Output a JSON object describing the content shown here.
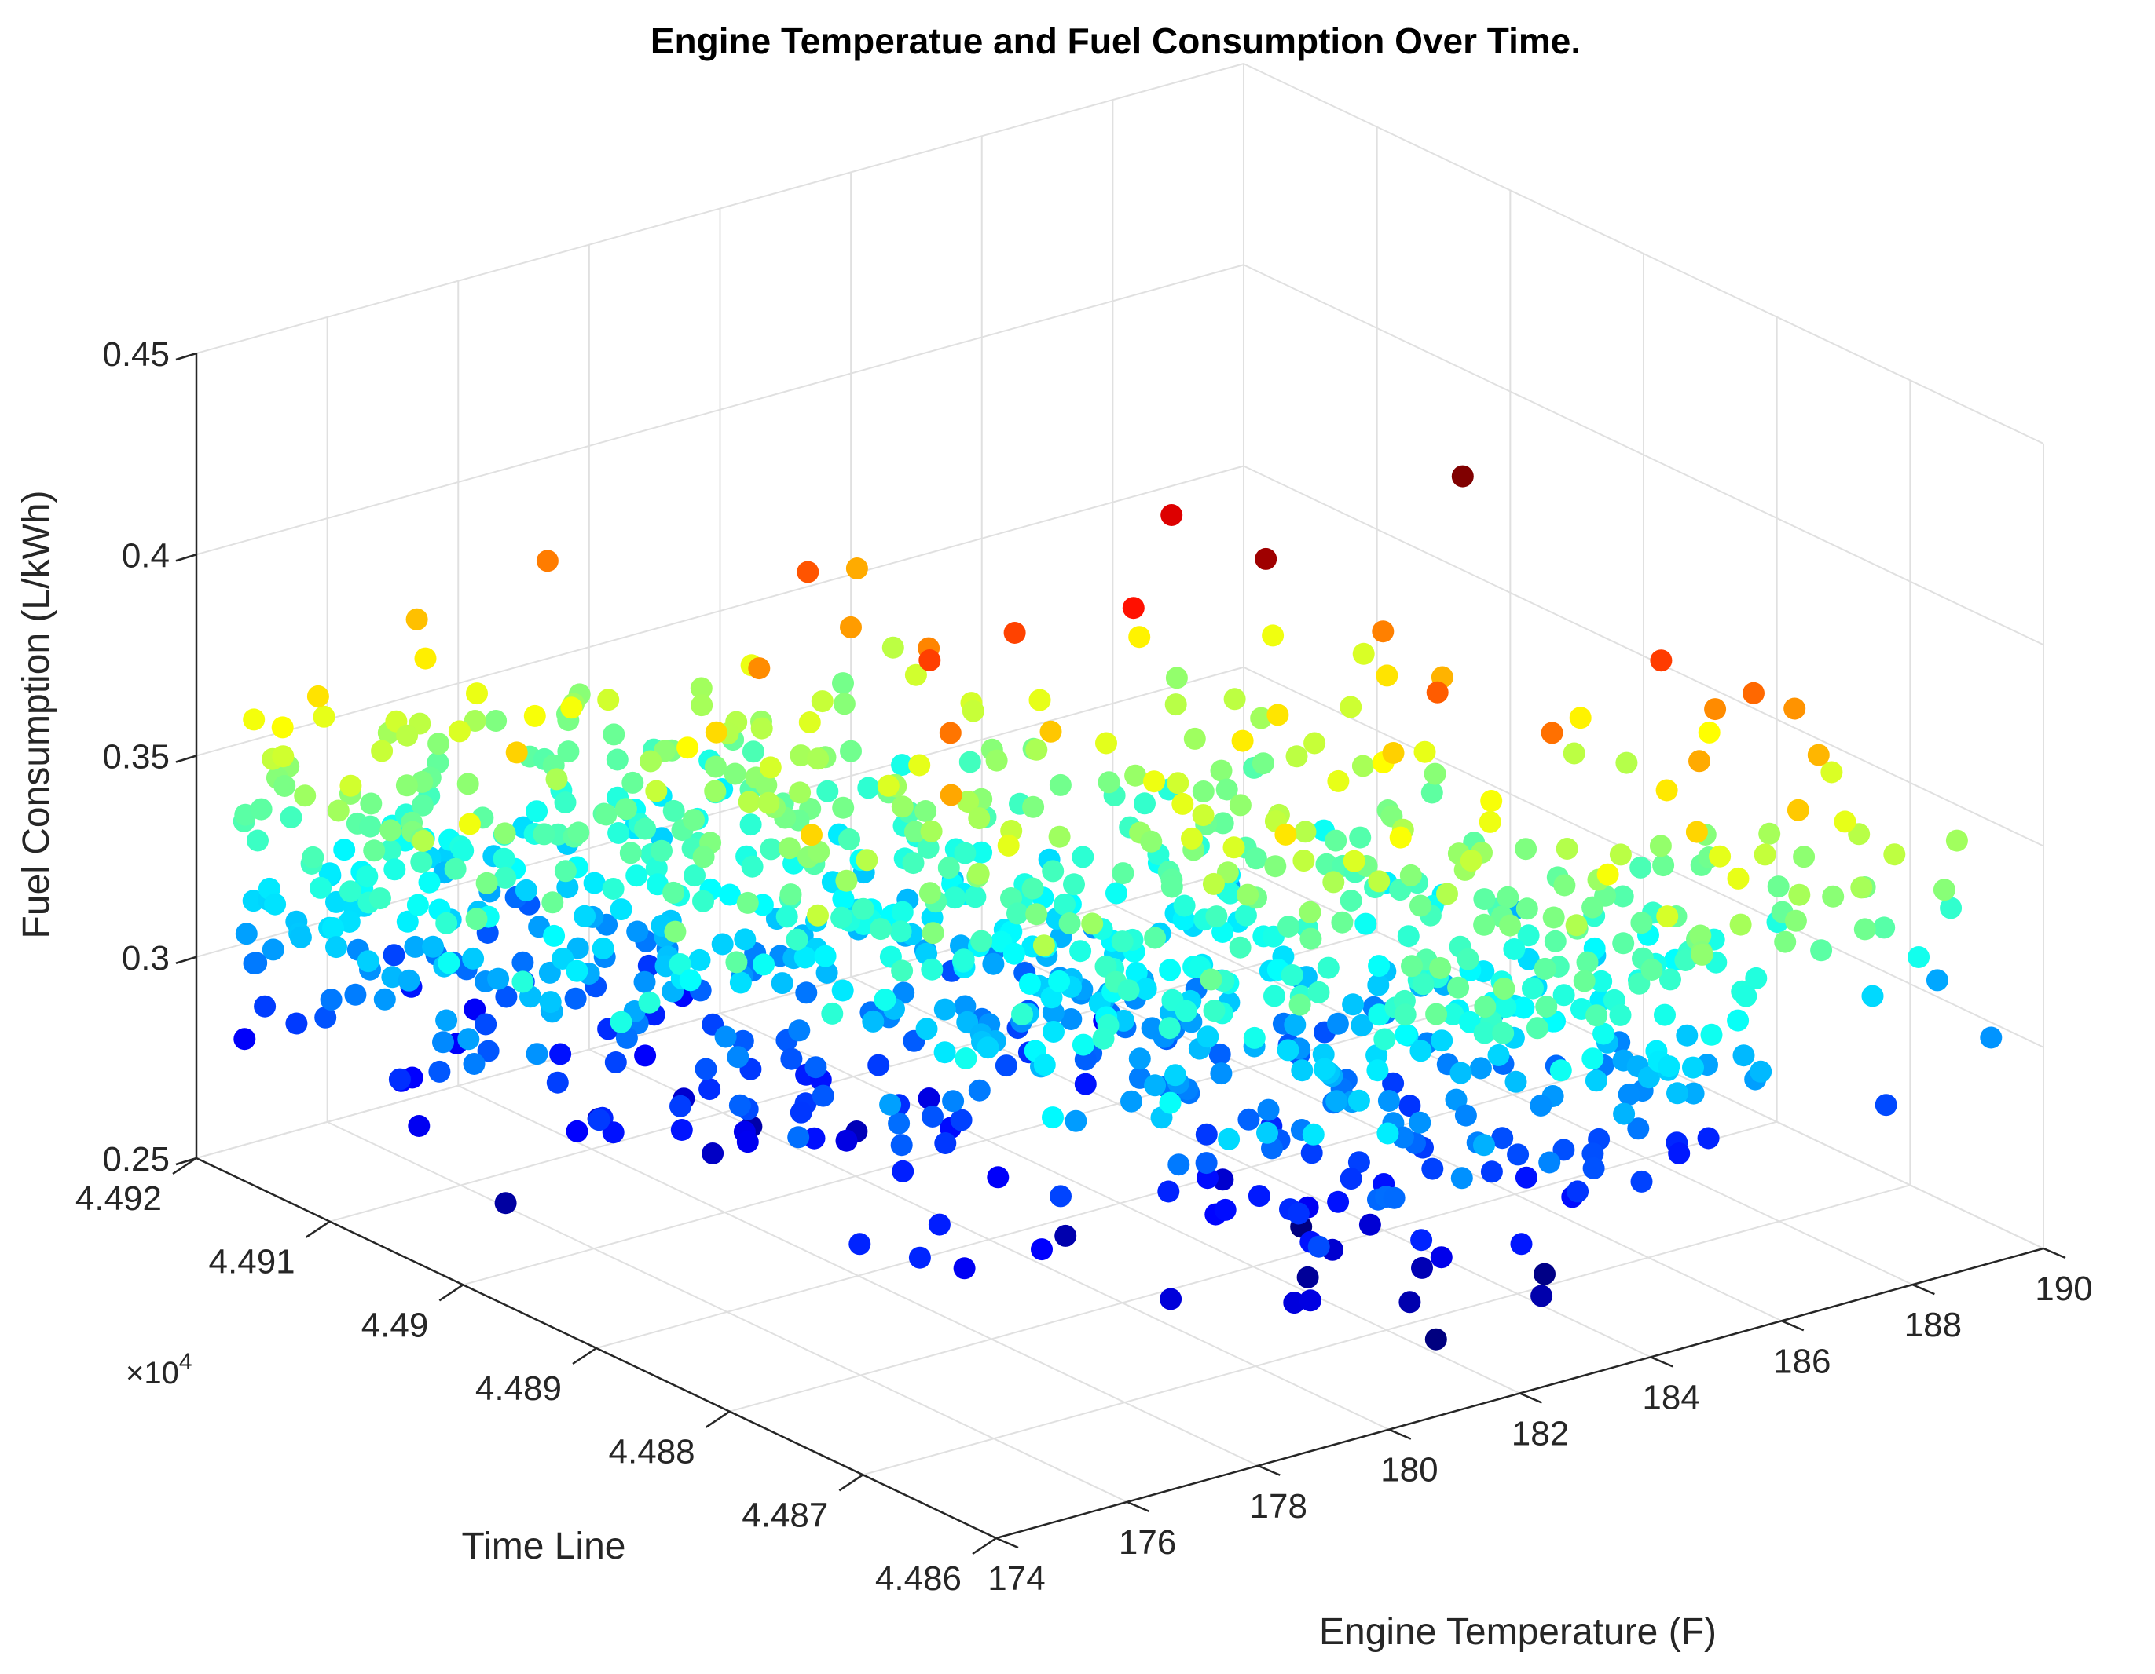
{
  "chart_data": {
    "type": "scatter3d",
    "title": "Engine Temperatue and Fuel Consumption Over Time.",
    "xlabel": "Engine Temperature (F)",
    "ylabel": "Time Line",
    "zlabel": "Fuel Consumption (L/kWh)",
    "y_exponent_label": "×10^4",
    "xlim": [
      174,
      190
    ],
    "ylim": [
      4.486,
      4.492
    ],
    "zlim": [
      0.25,
      0.45
    ],
    "xticks": [
      "174",
      "176",
      "178",
      "180",
      "182",
      "184",
      "186",
      "188",
      "190"
    ],
    "yticks": [
      "4.486",
      "4.487",
      "4.488",
      "4.489",
      "4.49",
      "4.491",
      "4.492"
    ],
    "zticks": [
      "0.25",
      "0.3",
      "0.35",
      "0.4",
      "0.45"
    ],
    "grid": true,
    "colormap": "jet",
    "color_by": "z",
    "seed": 42,
    "point_count": 1100,
    "points": [
      [
        176.2,
        4.4915,
        0.353
      ],
      [
        175.4,
        4.491,
        0.333
      ],
      [
        177.8,
        4.4905,
        0.282
      ],
      [
        179.2,
        4.4896,
        0.271
      ],
      [
        178.8,
        4.4887,
        0.386
      ],
      [
        178.2,
        4.4884,
        0.378
      ],
      [
        180.8,
        4.4892,
        0.394
      ],
      [
        181.8,
        4.4888,
        0.402
      ],
      [
        183.4,
        4.4893,
        0.41
      ],
      [
        182.6,
        4.4882,
        0.42
      ],
      [
        185.2,
        4.488,
        0.432
      ],
      [
        184.0,
        4.4876,
        0.39
      ],
      [
        186.4,
        4.4871,
        0.395
      ],
      [
        187.2,
        4.4868,
        0.388
      ],
      [
        188.5,
        4.4862,
        0.326
      ],
      [
        189.4,
        4.4864,
        0.331
      ],
      [
        189.6,
        4.4866,
        0.309
      ],
      [
        189.2,
        4.486,
        0.306
      ],
      [
        188.0,
        4.4863,
        0.317
      ],
      [
        186.8,
        4.4869,
        0.327
      ],
      [
        185.9,
        4.4865,
        0.288
      ],
      [
        187.8,
        4.4861,
        0.294
      ],
      [
        185.0,
        4.4872,
        0.299
      ],
      [
        183.6,
        4.4866,
        0.263
      ],
      [
        181.0,
        4.4871,
        0.266
      ],
      [
        180.0,
        4.4873,
        0.283
      ],
      [
        182.3,
        4.4878,
        0.306
      ],
      [
        184.5,
        4.4875,
        0.32
      ],
      [
        183.0,
        4.4881,
        0.352
      ],
      [
        181.5,
        4.4879,
        0.358
      ],
      [
        179.5,
        4.4874,
        0.33
      ],
      [
        176.8,
        4.4878,
        0.287
      ],
      [
        177.4,
        4.4884,
        0.3
      ],
      [
        178.5,
        4.489,
        0.327
      ],
      [
        180.4,
        4.4899,
        0.347
      ],
      [
        182.0,
        4.4901,
        0.355
      ],
      [
        184.8,
        4.4893,
        0.342
      ],
      [
        186.0,
        4.4886,
        0.345
      ],
      [
        187.5,
        4.4879,
        0.352
      ],
      [
        176.0,
        4.4903,
        0.323
      ],
      [
        175.0,
        4.4918,
        0.346
      ],
      [
        174.4,
        4.4912,
        0.318
      ],
      [
        177.0,
        4.4899,
        0.311
      ],
      [
        178.0,
        4.4895,
        0.296
      ],
      [
        179.8,
        4.4889,
        0.306
      ],
      [
        181.2,
        4.4885,
        0.324
      ],
      [
        183.8,
        4.4887,
        0.368
      ],
      [
        185.5,
        4.4883,
        0.376
      ],
      [
        188.8,
        4.487,
        0.358
      ],
      [
        186.9,
        4.4875,
        0.335
      ]
    ]
  }
}
